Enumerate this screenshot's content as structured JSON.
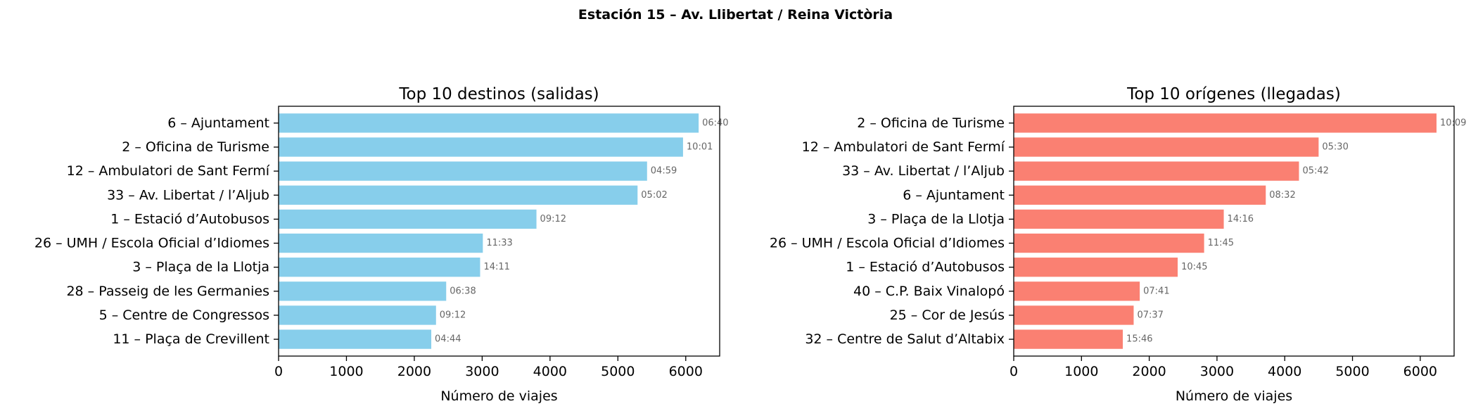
{
  "figure": {
    "title": "Estación 15 – Av. Llibertat / Reina Victòria"
  },
  "chart_data": [
    {
      "type": "bar",
      "orientation": "horizontal",
      "title": "Top 10 destinos (salidas)",
      "xlabel": "Número de viajes",
      "ylabel": "",
      "xlim": [
        0,
        6500
      ],
      "xticks": [
        0,
        1000,
        2000,
        3000,
        4000,
        5000,
        6000
      ],
      "color": "#87CEEB",
      "categories": [
        "6 – Ajuntament",
        "2 – Oficina de Turisme",
        "12 – Ambulatori de Sant Fermí",
        "33 – Av. Libertat / l’Aljub",
        "1 – Estació d’Autobusos",
        "26 – UMH / Escola Oficial d’Idiomes",
        "3 – Plaça de la Llotja",
        "28 – Passeig de les Germanies",
        "5 – Centre de Congressos",
        "11 – Plaça de Crevillent"
      ],
      "values": [
        6190,
        5960,
        5430,
        5290,
        3800,
        3010,
        2970,
        2470,
        2320,
        2250
      ],
      "bar_labels": [
        "06:40",
        "10:01",
        "04:59",
        "05:02",
        "09:12",
        "11:33",
        "14:11",
        "06:38",
        "09:12",
        "04:44"
      ]
    },
    {
      "type": "bar",
      "orientation": "horizontal",
      "title": "Top 10 orígenes (llegadas)",
      "xlabel": "Número de viajes",
      "ylabel": "",
      "xlim": [
        0,
        6500
      ],
      "xticks": [
        0,
        1000,
        2000,
        3000,
        4000,
        5000,
        6000
      ],
      "color": "#FA8072",
      "categories": [
        "2 – Oficina de Turisme",
        "12 – Ambulatori de Sant Fermí",
        "33 – Av. Libertat / l’Aljub",
        "6 – Ajuntament",
        "3 – Plaça de la Llotja",
        "26 – UMH / Escola Oficial d’Idiomes",
        "1 – Estació d’Autobusos",
        "40 – C.P. Baix Vinalopó",
        "25 – Cor de Jesús",
        "32 – Centre de Salut d’Altabix"
      ],
      "values": [
        6240,
        4500,
        4210,
        3720,
        3100,
        2810,
        2420,
        1860,
        1770,
        1610
      ],
      "bar_labels": [
        "10:09",
        "05:30",
        "05:42",
        "08:32",
        "14:16",
        "11:45",
        "10:45",
        "07:41",
        "07:37",
        "15:46"
      ]
    }
  ]
}
